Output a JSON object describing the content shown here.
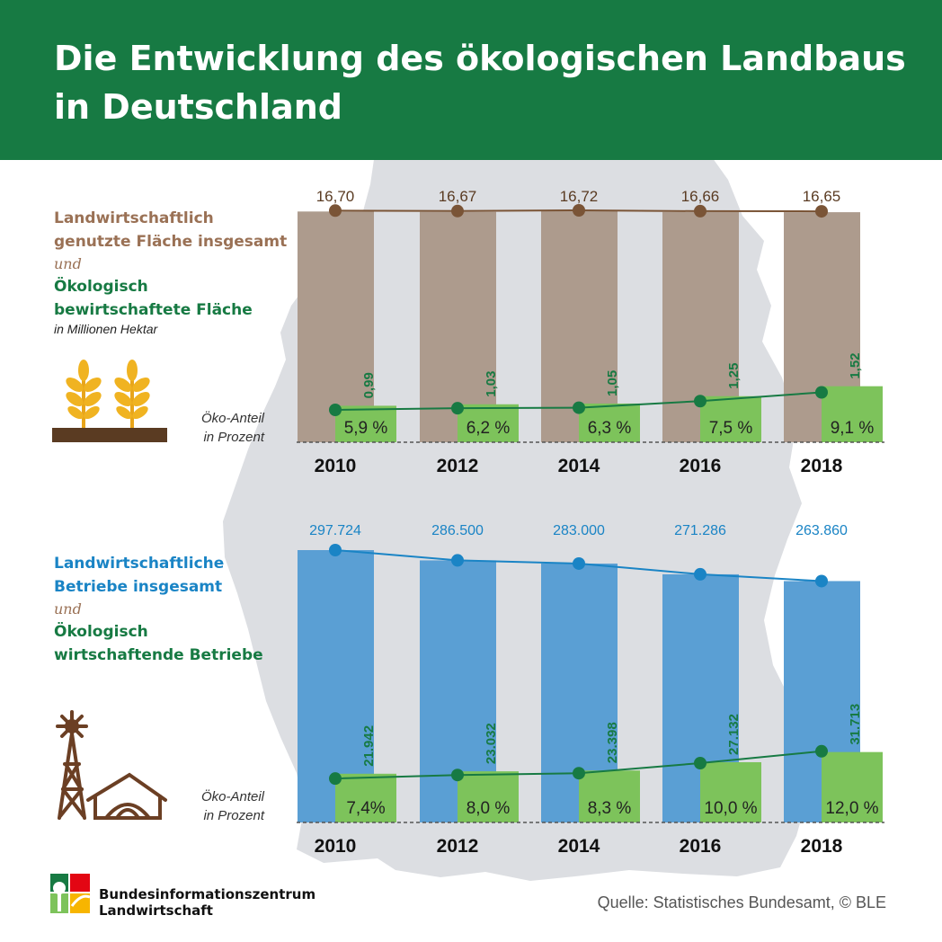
{
  "header": {
    "title_line1": "Die Entwicklung des ökologischen Landbaus",
    "title_line2": "in Deutschland"
  },
  "legend": {
    "area_total_line1": "Landwirtschaftlich",
    "area_total_line2": "genutzte Fläche insgesamt",
    "and": "und",
    "area_organic_line1": "Ökologisch",
    "area_organic_line2": "bewirtschaftete Fläche",
    "area_unit": "in Millionen Hektar",
    "farms_total_line1": "Landwirtschaftliche",
    "farms_total_line2": "Betriebe insgesamt",
    "farms_organic_line1": "Ökologisch",
    "farms_organic_line2": "wirtschaftende Betriebe",
    "share_line1": "Öko-Anteil",
    "share_line2": "in Prozent"
  },
  "footer": {
    "logo_line1": "Bundesinformationszentrum",
    "logo_line2": "Landwirtschaft",
    "source": "Quelle: Statistisches Bundesamt, © BLE"
  },
  "colors": {
    "header_green": "#177a43",
    "area_total": "#ad9b8d",
    "area_total_line": "#7a5436",
    "farms_total": "#5a9fd4",
    "farms_total_line": "#1a84c5",
    "organic": "#7dc35b",
    "organic_line": "#177a43",
    "map": "#dcdee2"
  },
  "icons": [
    "map-of-germany-icon",
    "wheat-plants-icon",
    "windmill-farm-icon",
    "ble-logo-icon"
  ],
  "chart_data": [
    {
      "type": "bar",
      "categories": [
        "2010",
        "2012",
        "2014",
        "2016",
        "2018"
      ],
      "series": [
        {
          "name": "Landwirtschaftlich genutzte Fläche insgesamt",
          "values": [
            16.7,
            16.67,
            16.72,
            16.66,
            16.65
          ],
          "labels": [
            "16,70",
            "16,67",
            "16,72",
            "16,66",
            "16,65"
          ]
        },
        {
          "name": "Ökologisch bewirtschaftete Fläche",
          "values": [
            0.99,
            1.03,
            1.05,
            1.25,
            1.52
          ],
          "labels": [
            "0,99",
            "1,03",
            "1,05",
            "1,25",
            "1,52"
          ]
        },
        {
          "name": "Öko-Anteil in Prozent",
          "values": [
            5.9,
            6.2,
            6.3,
            7.5,
            9.1
          ],
          "labels": [
            "5,9 %",
            "6,2 %",
            "6,3 %",
            "7,5 %",
            "9,1 %"
          ]
        }
      ],
      "ylabel": "in Millionen Hektar"
    },
    {
      "type": "bar",
      "categories": [
        "2010",
        "2012",
        "2014",
        "2016",
        "2018"
      ],
      "series": [
        {
          "name": "Landwirtschaftliche Betriebe insgesamt",
          "values": [
            297724,
            286500,
            283000,
            271286,
            263860
          ],
          "labels": [
            "297.724",
            "286.500",
            "283.000",
            "271.286",
            "263.860"
          ]
        },
        {
          "name": "Ökologisch wirtschaftende Betriebe",
          "values": [
            21942,
            23032,
            23398,
            27132,
            31713
          ],
          "labels": [
            "21.942",
            "23.032",
            "23.398",
            "27.132",
            "31.713"
          ]
        },
        {
          "name": "Öko-Anteil in Prozent",
          "values": [
            7.4,
            8.0,
            8.3,
            10.0,
            12.0
          ],
          "labels": [
            "7,4%",
            "8,0 %",
            "8,3 %",
            "10,0 %",
            "12,0 %"
          ]
        }
      ]
    }
  ]
}
